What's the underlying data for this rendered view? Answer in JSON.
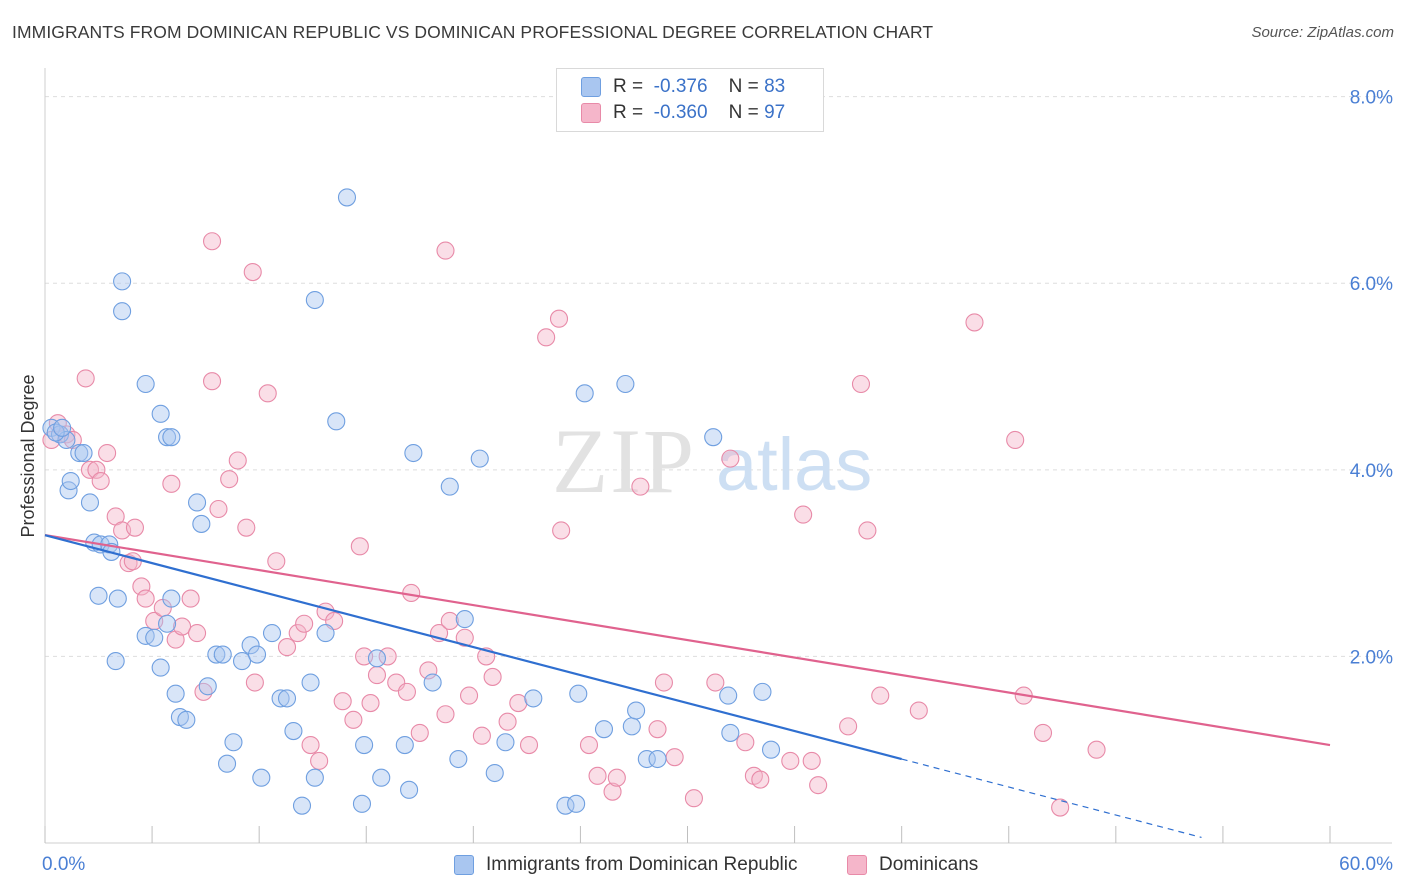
{
  "header": {
    "title": "IMMIGRANTS FROM DOMINICAN REPUBLIC VS DOMINICAN PROFESSIONAL DEGREE CORRELATION CHART",
    "source": "Source: ZipAtlas.com"
  },
  "watermark": {
    "zip": "ZIP",
    "atlas": "atlas"
  },
  "legend": {
    "rows": [
      {
        "r_label": "R =",
        "r_value": "-0.376",
        "n_label": "N =",
        "n_value": "83",
        "color": "#a9c6f0"
      },
      {
        "r_label": "R =",
        "r_value": "-0.360",
        "n_label": "N =",
        "n_value": "97",
        "color": "#f5b6ca"
      }
    ]
  },
  "bottom_legend": {
    "blue_label": "Immigrants from Dominican Republic",
    "pink_label": "Dominicans"
  },
  "colors": {
    "blue_fill": "#a9c6f0",
    "blue_stroke": "#6f9fe0",
    "blue_line": "#2f6fd0",
    "pink_fill": "#f5b6ca",
    "pink_stroke": "#e88aa8",
    "pink_line": "#e0628e",
    "grid": "#dddddd",
    "tick_label": "#4a7fd4"
  },
  "chart_data": {
    "type": "scatter",
    "title": "IMMIGRANTS FROM DOMINICAN REPUBLIC VS DOMINICAN PROFESSIONAL DEGREE CORRELATION CHART",
    "xlabel": "",
    "ylabel": "Professional Degree",
    "xlim": [
      0,
      60
    ],
    "ylim": [
      0,
      8.2
    ],
    "x_tick_labels": [
      "0.0%",
      "60.0%"
    ],
    "y_ticks": [
      2,
      4,
      6,
      8
    ],
    "y_tick_labels": [
      "2.0%",
      "4.0%",
      "6.0%",
      "8.0%"
    ],
    "grid": true,
    "legend_position": "top-center",
    "series": [
      {
        "name": "Immigrants from Dominican Republic",
        "r": -0.376,
        "n": 83,
        "trend": {
          "x": [
            0,
            40
          ],
          "y": [
            3.3,
            0.9
          ]
        },
        "trend_dashed": {
          "x": [
            40,
            54
          ],
          "y": [
            0.9,
            0.06
          ]
        },
        "points": [
          [
            0.3,
            4.45
          ],
          [
            0.7,
            4.38
          ],
          [
            1.1,
            3.78
          ],
          [
            1.2,
            3.88
          ],
          [
            1.6,
            4.18
          ],
          [
            1.8,
            4.18
          ],
          [
            2.1,
            3.65
          ],
          [
            2.3,
            3.22
          ],
          [
            2.6,
            3.2
          ],
          [
            2.5,
            2.65
          ],
          [
            3.0,
            3.2
          ],
          [
            3.1,
            3.12
          ],
          [
            3.4,
            2.62
          ],
          [
            3.3,
            1.95
          ],
          [
            4.7,
            2.22
          ],
          [
            5.1,
            2.2
          ],
          [
            5.4,
            1.88
          ],
          [
            5.7,
            2.35
          ],
          [
            5.9,
            2.62
          ],
          [
            6.1,
            1.6
          ],
          [
            6.3,
            1.35
          ],
          [
            6.6,
            1.32
          ],
          [
            7.1,
            3.65
          ],
          [
            7.3,
            3.42
          ],
          [
            7.6,
            1.68
          ],
          [
            8.0,
            2.02
          ],
          [
            8.3,
            2.02
          ],
          [
            8.5,
            0.85
          ],
          [
            8.8,
            1.08
          ],
          [
            9.2,
            1.95
          ],
          [
            9.6,
            2.12
          ],
          [
            9.9,
            2.02
          ],
          [
            10.1,
            0.7
          ],
          [
            10.6,
            2.25
          ],
          [
            11.0,
            1.55
          ],
          [
            11.3,
            1.55
          ],
          [
            11.6,
            1.2
          ],
          [
            12.0,
            0.4
          ],
          [
            12.4,
            1.72
          ],
          [
            12.6,
            0.7
          ],
          [
            13.1,
            2.25
          ],
          [
            13.6,
            4.52
          ],
          [
            14.1,
            6.92
          ],
          [
            14.8,
            0.42
          ],
          [
            14.9,
            1.05
          ],
          [
            15.5,
            1.98
          ],
          [
            15.7,
            0.7
          ],
          [
            16.8,
            1.05
          ],
          [
            17.0,
            0.57
          ],
          [
            17.2,
            4.18
          ],
          [
            18.1,
            1.72
          ],
          [
            18.9,
            3.82
          ],
          [
            19.3,
            0.9
          ],
          [
            19.6,
            2.4
          ],
          [
            20.3,
            4.12
          ],
          [
            21.0,
            0.75
          ],
          [
            21.5,
            1.08
          ],
          [
            22.8,
            1.55
          ],
          [
            24.3,
            0.4
          ],
          [
            24.8,
            0.42
          ],
          [
            24.9,
            1.6
          ],
          [
            25.2,
            4.82
          ],
          [
            26.1,
            1.22
          ],
          [
            27.1,
            4.92
          ],
          [
            27.4,
            1.25
          ],
          [
            27.6,
            1.42
          ],
          [
            28.1,
            0.9
          ],
          [
            28.6,
            0.9
          ],
          [
            31.2,
            4.35
          ],
          [
            31.9,
            1.58
          ],
          [
            32.0,
            1.18
          ],
          [
            33.5,
            1.62
          ],
          [
            33.9,
            1.0
          ],
          [
            3.6,
            6.02
          ],
          [
            3.6,
            5.7
          ],
          [
            4.7,
            4.92
          ],
          [
            5.4,
            4.6
          ],
          [
            5.7,
            4.35
          ],
          [
            5.9,
            4.35
          ],
          [
            12.6,
            5.82
          ],
          [
            1.0,
            4.32
          ],
          [
            0.5,
            4.4
          ],
          [
            0.8,
            4.45
          ]
        ]
      },
      {
        "name": "Dominicans",
        "r": -0.36,
        "n": 97,
        "trend": {
          "x": [
            0,
            60
          ],
          "y": [
            3.3,
            1.05
          ]
        },
        "points": [
          [
            0.3,
            4.32
          ],
          [
            0.6,
            4.5
          ],
          [
            1.0,
            4.38
          ],
          [
            1.3,
            4.32
          ],
          [
            1.9,
            4.98
          ],
          [
            2.1,
            4.0
          ],
          [
            2.4,
            4.0
          ],
          [
            2.6,
            3.88
          ],
          [
            2.9,
            4.18
          ],
          [
            3.3,
            3.5
          ],
          [
            3.6,
            3.35
          ],
          [
            3.9,
            3.0
          ],
          [
            4.1,
            3.02
          ],
          [
            4.2,
            3.38
          ],
          [
            4.5,
            2.75
          ],
          [
            4.7,
            2.62
          ],
          [
            5.1,
            2.38
          ],
          [
            5.5,
            2.52
          ],
          [
            5.9,
            3.85
          ],
          [
            6.1,
            2.18
          ],
          [
            6.4,
            2.32
          ],
          [
            6.8,
            2.62
          ],
          [
            7.1,
            2.25
          ],
          [
            7.4,
            1.62
          ],
          [
            7.8,
            4.95
          ],
          [
            8.1,
            3.58
          ],
          [
            8.6,
            3.9
          ],
          [
            9.0,
            4.1
          ],
          [
            9.4,
            3.38
          ],
          [
            9.8,
            1.72
          ],
          [
            10.4,
            4.82
          ],
          [
            10.8,
            3.02
          ],
          [
            11.3,
            2.1
          ],
          [
            11.8,
            2.25
          ],
          [
            12.1,
            2.35
          ],
          [
            12.4,
            1.05
          ],
          [
            12.8,
            0.88
          ],
          [
            13.1,
            2.48
          ],
          [
            13.5,
            2.38
          ],
          [
            13.9,
            1.52
          ],
          [
            14.4,
            1.32
          ],
          [
            14.7,
            3.18
          ],
          [
            14.9,
            2.0
          ],
          [
            15.2,
            1.5
          ],
          [
            15.5,
            1.8
          ],
          [
            16.0,
            2.0
          ],
          [
            16.4,
            1.72
          ],
          [
            16.9,
            1.62
          ],
          [
            17.1,
            2.68
          ],
          [
            17.5,
            1.18
          ],
          [
            17.9,
            1.85
          ],
          [
            18.4,
            2.25
          ],
          [
            18.7,
            1.38
          ],
          [
            18.9,
            2.38
          ],
          [
            19.6,
            2.2
          ],
          [
            19.8,
            1.58
          ],
          [
            20.4,
            1.15
          ],
          [
            20.6,
            2.0
          ],
          [
            20.9,
            1.78
          ],
          [
            21.6,
            1.3
          ],
          [
            22.1,
            1.5
          ],
          [
            22.6,
            1.05
          ],
          [
            23.4,
            5.42
          ],
          [
            24.0,
            5.62
          ],
          [
            24.1,
            3.35
          ],
          [
            25.4,
            1.05
          ],
          [
            25.8,
            0.72
          ],
          [
            26.5,
            0.55
          ],
          [
            26.7,
            0.7
          ],
          [
            27.8,
            3.82
          ],
          [
            28.6,
            1.22
          ],
          [
            28.9,
            1.72
          ],
          [
            29.4,
            0.92
          ],
          [
            30.3,
            0.48
          ],
          [
            31.3,
            1.72
          ],
          [
            32.0,
            4.12
          ],
          [
            32.7,
            1.08
          ],
          [
            33.1,
            0.72
          ],
          [
            33.4,
            0.68
          ],
          [
            34.8,
            0.88
          ],
          [
            35.4,
            3.52
          ],
          [
            35.8,
            0.88
          ],
          [
            36.1,
            0.62
          ],
          [
            37.5,
            1.25
          ],
          [
            38.1,
            4.92
          ],
          [
            38.4,
            3.35
          ],
          [
            39.0,
            1.58
          ],
          [
            40.8,
            1.42
          ],
          [
            43.4,
            5.58
          ],
          [
            45.3,
            4.32
          ],
          [
            45.7,
            1.58
          ],
          [
            46.6,
            1.18
          ],
          [
            47.4,
            0.38
          ],
          [
            49.1,
            1.0
          ],
          [
            9.7,
            6.12
          ],
          [
            7.8,
            6.45
          ],
          [
            18.7,
            6.35
          ]
        ]
      }
    ]
  }
}
